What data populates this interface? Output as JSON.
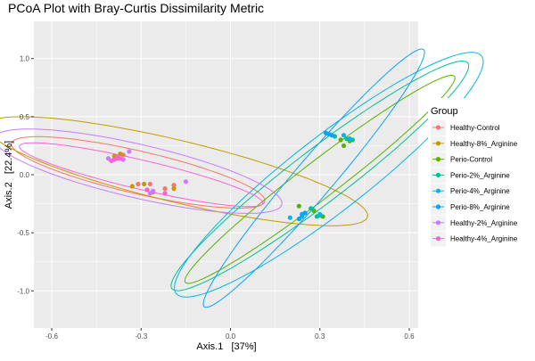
{
  "chart_data": {
    "type": "scatter",
    "title": "PCoA Plot with Bray-Curtis Dissimilarity Metric",
    "xlabel": "Axis.1   [37%]",
    "ylabel": "Axis.2   [22.4%]",
    "xlim": [
      -0.66,
      0.63
    ],
    "ylim": [
      -1.32,
      1.32
    ],
    "xticks": [
      -0.6,
      -0.3,
      0.0,
      0.3,
      0.6
    ],
    "xtick_labels": [
      "-0.6",
      "-0.3",
      "0.0",
      "0.3",
      "0.6"
    ],
    "yticks": [
      -1.0,
      -0.5,
      0.0,
      0.5,
      1.0
    ],
    "ytick_labels": [
      "-1.0",
      "-0.5",
      "0.0",
      "0.5",
      "1.0"
    ],
    "grid": true,
    "legend": {
      "title": "Group",
      "position": "right"
    },
    "series": [
      {
        "name": "Healthy-Control",
        "color": "#F8766D",
        "points": [
          [
            -0.31,
            -0.08
          ],
          [
            -0.22,
            -0.12
          ],
          [
            -0.38,
            0.14
          ],
          [
            -0.27,
            -0.08
          ],
          [
            -0.19,
            -0.09
          ],
          [
            -0.36,
            0.17
          ]
        ],
        "ellipse": {
          "center": [
            -0.31,
            0.02
          ],
          "semi_major": 0.5,
          "semi_minor": 0.16,
          "angle_deg": -33.7
        }
      },
      {
        "name": "Healthy-8%_Arginine",
        "color": "#C49A00",
        "points": [
          [
            -0.33,
            -0.1
          ],
          [
            -0.26,
            -0.15
          ],
          [
            -0.19,
            -0.12
          ],
          [
            -0.39,
            0.16
          ],
          [
            -0.29,
            -0.08
          ],
          [
            -0.37,
            0.18
          ]
        ],
        "ellipse": {
          "center": [
            -0.18,
            0.03
          ],
          "semi_major": 0.76,
          "semi_minor": 0.23,
          "angle_deg": -34.4
        }
      },
      {
        "name": "Perio-Control",
        "color": "#53B400",
        "points": [
          [
            0.23,
            -0.27
          ],
          [
            0.37,
            0.3
          ],
          [
            0.28,
            -0.31
          ],
          [
            0.38,
            0.25
          ],
          [
            0.31,
            -0.36
          ],
          [
            0.4,
            0.29
          ]
        ],
        "ellipse": {
          "center": [
            0.3,
            -0.04
          ],
          "semi_major": 1.0,
          "semi_minor": 0.09,
          "angle_deg": 63.5
        }
      },
      {
        "name": "Perio-2%_Arginine",
        "color": "#00C094",
        "points": [
          [
            0.29,
            -0.36
          ],
          [
            0.41,
            0.3
          ],
          [
            0.35,
            0.33
          ],
          [
            0.3,
            -0.35
          ],
          [
            0.39,
            0.31
          ],
          [
            0.27,
            -0.29
          ]
        ],
        "ellipse": {
          "center": [
            0.3,
            -0.01
          ],
          "semi_major": 1.1,
          "semi_minor": 0.13,
          "angle_deg": 63.8
        }
      },
      {
        "name": "Perio-4%_Arginine",
        "color": "#00B6EB",
        "points": [
          [
            0.2,
            -0.37
          ],
          [
            0.25,
            -0.33
          ],
          [
            0.38,
            0.34
          ],
          [
            0.4,
            0.31
          ],
          [
            0.3,
            -0.34
          ],
          [
            0.24,
            -0.36
          ]
        ],
        "ellipse": {
          "center": [
            0.33,
            0.0
          ],
          "semi_major": 1.16,
          "semi_minor": 0.18,
          "angle_deg": 64.9
        }
      },
      {
        "name": "Perio-8%_Arginine",
        "color": "#06A4FF",
        "points": [
          [
            0.32,
            0.36
          ],
          [
            0.34,
            0.34
          ],
          [
            0.23,
            -0.38
          ],
          [
            0.25,
            -0.33
          ],
          [
            0.33,
            0.35
          ],
          [
            0.24,
            -0.34
          ]
        ],
        "ellipse": {
          "center": [
            0.28,
            -0.03
          ],
          "semi_major": 1.17,
          "semi_minor": 0.08,
          "angle_deg": 71.9
        }
      },
      {
        "name": "Healthy-2%_Arginine",
        "color": "#C77CFF",
        "points": [
          [
            -0.41,
            0.14
          ],
          [
            -0.15,
            -0.06
          ],
          [
            -0.36,
            0.13
          ],
          [
            -0.26,
            -0.14
          ],
          [
            -0.34,
            0.2
          ],
          [
            -0.27,
            -0.16
          ]
        ],
        "ellipse": {
          "center": [
            -0.31,
            0.03
          ],
          "semi_major": 0.57,
          "semi_minor": 0.2,
          "angle_deg": -34.6
        }
      },
      {
        "name": "Healthy-4%_Arginine",
        "color": "#FB61D7",
        "points": [
          [
            -0.4,
            0.12
          ],
          [
            -0.38,
            0.15
          ],
          [
            -0.28,
            -0.13
          ],
          [
            -0.39,
            0.13
          ],
          [
            -0.22,
            -0.16
          ],
          [
            -0.37,
            0.14
          ]
        ],
        "ellipse": {
          "center": [
            -0.3,
            0.0
          ],
          "semi_major": 0.48,
          "semi_minor": 0.11,
          "angle_deg": -32.6
        }
      }
    ]
  }
}
